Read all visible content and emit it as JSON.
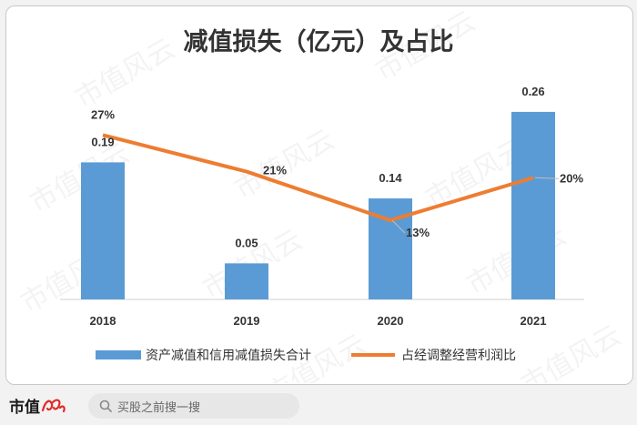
{
  "watermark_text": "市值风云",
  "chart_data": {
    "type": "bar+line",
    "title": "减值损失（亿元）及占比",
    "categories": [
      "2018",
      "2019",
      "2020",
      "2021"
    ],
    "series": [
      {
        "name": "资产减值和信用减值损失合计",
        "kind": "bar",
        "values": [
          0.19,
          0.05,
          0.14,
          0.26
        ],
        "labels": [
          "0.19",
          "0.05",
          "0.14",
          "0.26"
        ],
        "color": "#5b9bd5"
      },
      {
        "name": "占经调整经营利润比",
        "kind": "line",
        "values": [
          27,
          21,
          13,
          20
        ],
        "labels": [
          "27%",
          "21%",
          "13%",
          "20%"
        ],
        "color": "#ed7d31"
      }
    ],
    "bar_axis_range": [
      0,
      0.27
    ],
    "line_axis_range": [
      0,
      32
    ],
    "legend_position": "bottom",
    "grid": false
  },
  "footer": {
    "logo_text": "市值",
    "search_placeholder": "买股之前搜一搜",
    "brand_color": "#e02a2a"
  }
}
